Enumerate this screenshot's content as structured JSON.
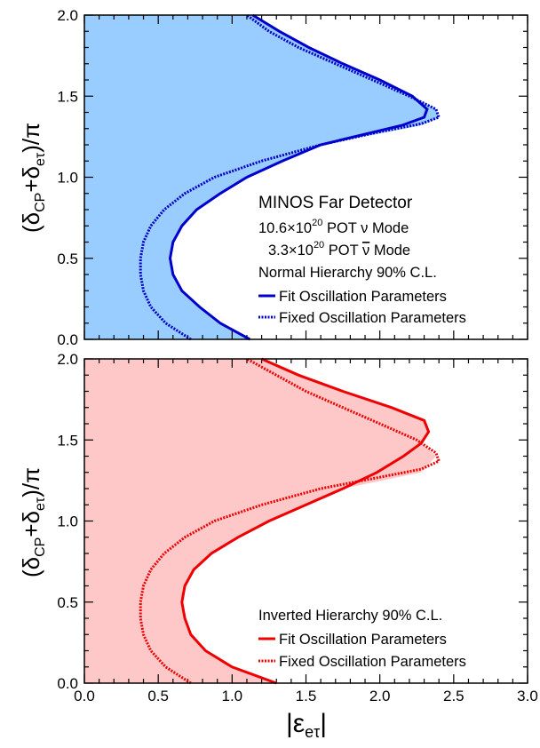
{
  "chart_data": [
    {
      "type": "area",
      "ylabel_parts": {
        "open": "(δ",
        "sub1": "CP",
        "plus": "+δ",
        "sub2": "eτ",
        "close": ")/π"
      },
      "xlim": [
        0,
        3.0
      ],
      "ylim": [
        0,
        2.0
      ],
      "yticks": [
        "0.0",
        "0.5",
        "1.0",
        "1.5",
        "2.0"
      ],
      "legend": {
        "title": "MINOS Far Detector",
        "line1": {
          "pre": "10.6×10",
          "sup": "20",
          "post": " POT ν Mode"
        },
        "line2": {
          "pre": "3.3×10",
          "sup": "20",
          "post": " POT ",
          "nubar": "ν",
          "post2": " Mode"
        },
        "hierarchy": "Normal Hierarchy 90% C.L.",
        "placement": "right"
      },
      "fill_color": "#99ccff",
      "line_color": "#0000cc",
      "series": [
        {
          "name": "Fit Oscillation Parameters",
          "style": "solid",
          "points": [
            [
              1.12,
              0.0
            ],
            [
              0.92,
              0.1
            ],
            [
              0.78,
              0.2
            ],
            [
              0.66,
              0.3
            ],
            [
              0.6,
              0.4
            ],
            [
              0.58,
              0.5
            ],
            [
              0.6,
              0.6
            ],
            [
              0.66,
              0.7
            ],
            [
              0.76,
              0.8
            ],
            [
              0.92,
              0.9
            ],
            [
              1.1,
              1.0
            ],
            [
              1.34,
              1.1
            ],
            [
              1.6,
              1.2
            ],
            [
              1.92,
              1.27
            ],
            [
              2.15,
              1.32
            ],
            [
              2.3,
              1.37
            ],
            [
              2.32,
              1.42
            ],
            [
              2.22,
              1.5
            ],
            [
              2.0,
              1.6
            ],
            [
              1.75,
              1.7
            ],
            [
              1.52,
              1.8
            ],
            [
              1.32,
              1.9
            ],
            [
              1.14,
              2.0
            ]
          ]
        },
        {
          "name": "Fixed Oscillation Parameters",
          "style": "dotted",
          "points": [
            [
              0.72,
              0.0
            ],
            [
              0.55,
              0.1
            ],
            [
              0.45,
              0.2
            ],
            [
              0.4,
              0.3
            ],
            [
              0.38,
              0.4
            ],
            [
              0.38,
              0.5
            ],
            [
              0.4,
              0.6
            ],
            [
              0.45,
              0.7
            ],
            [
              0.54,
              0.8
            ],
            [
              0.68,
              0.9
            ],
            [
              0.88,
              1.0
            ],
            [
              1.2,
              1.1
            ],
            [
              1.6,
              1.2
            ],
            [
              2.0,
              1.28
            ],
            [
              2.28,
              1.33
            ],
            [
              2.4,
              1.37
            ],
            [
              2.38,
              1.42
            ],
            [
              2.2,
              1.5
            ],
            [
              1.95,
              1.6
            ],
            [
              1.7,
              1.7
            ],
            [
              1.45,
              1.8
            ],
            [
              1.25,
              1.9
            ],
            [
              1.1,
              2.0
            ]
          ]
        }
      ]
    },
    {
      "type": "area",
      "ylabel_parts": {
        "open": "(δ",
        "sub1": "CP",
        "plus": "+δ",
        "sub2": "eτ",
        "close": ")/π"
      },
      "xlabel_parts": {
        "bar": "|",
        "eps": "ε",
        "sub": "eτ",
        "bar2": "|"
      },
      "xlim": [
        0,
        3.0
      ],
      "ylim": [
        0,
        2.0
      ],
      "xticks": [
        "0.0",
        "0.5",
        "1.0",
        "1.5",
        "2.0",
        "2.5",
        "3.0"
      ],
      "yticks": [
        "0.0",
        "0.5",
        "1.0",
        "1.5",
        "2.0"
      ],
      "legend": {
        "hierarchy": "Inverted Hierarchy 90% C.L.",
        "placement": "bottom-right"
      },
      "fill_color": "#ffc8c8",
      "line_color": "#ee0000",
      "series": [
        {
          "name": "Fit Oscillation Parameters",
          "style": "solid",
          "points": [
            [
              1.3,
              0.0
            ],
            [
              1.0,
              0.1
            ],
            [
              0.82,
              0.2
            ],
            [
              0.72,
              0.3
            ],
            [
              0.68,
              0.4
            ],
            [
              0.66,
              0.5
            ],
            [
              0.68,
              0.6
            ],
            [
              0.74,
              0.7
            ],
            [
              0.86,
              0.8
            ],
            [
              1.04,
              0.9
            ],
            [
              1.25,
              1.0
            ],
            [
              1.5,
              1.1
            ],
            [
              1.75,
              1.2
            ],
            [
              1.98,
              1.3
            ],
            [
              2.16,
              1.4
            ],
            [
              2.28,
              1.48
            ],
            [
              2.33,
              1.55
            ],
            [
              2.3,
              1.62
            ],
            [
              2.08,
              1.7
            ],
            [
              1.75,
              1.8
            ],
            [
              1.45,
              1.9
            ],
            [
              1.2,
              2.0
            ]
          ]
        },
        {
          "name": "Fixed Oscillation Parameters",
          "style": "dotted",
          "points": [
            [
              0.72,
              0.0
            ],
            [
              0.55,
              0.1
            ],
            [
              0.45,
              0.2
            ],
            [
              0.4,
              0.3
            ],
            [
              0.38,
              0.4
            ],
            [
              0.38,
              0.5
            ],
            [
              0.4,
              0.6
            ],
            [
              0.45,
              0.7
            ],
            [
              0.54,
              0.8
            ],
            [
              0.68,
              0.9
            ],
            [
              0.88,
              1.0
            ],
            [
              1.2,
              1.1
            ],
            [
              1.6,
              1.2
            ],
            [
              2.0,
              1.27
            ],
            [
              2.28,
              1.32
            ],
            [
              2.4,
              1.37
            ],
            [
              2.38,
              1.42
            ],
            [
              2.25,
              1.5
            ],
            [
              2.0,
              1.6
            ],
            [
              1.75,
              1.7
            ],
            [
              1.5,
              1.8
            ],
            [
              1.3,
              1.9
            ],
            [
              1.1,
              2.0
            ]
          ]
        }
      ]
    }
  ]
}
